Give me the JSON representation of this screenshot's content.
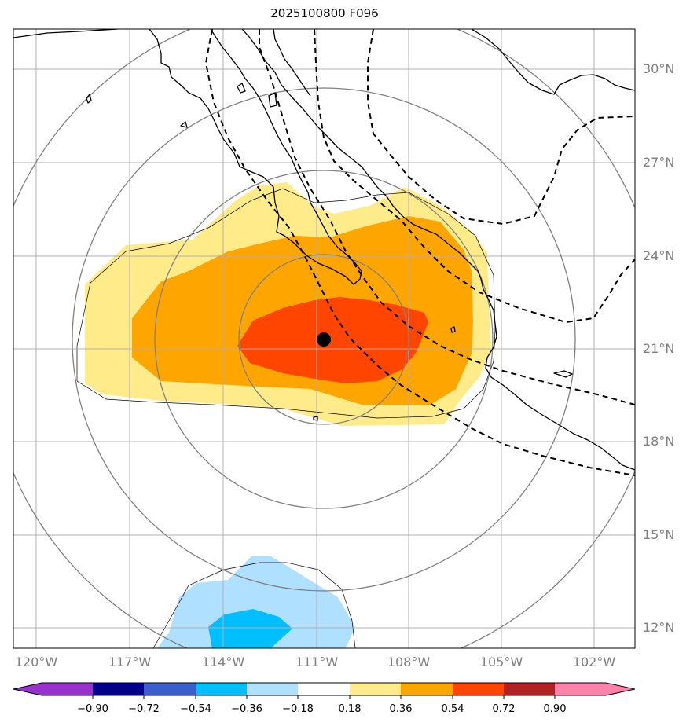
{
  "title": "2025100800 F096",
  "lat_labels": [
    "30°N",
    "27°N",
    "24°N",
    "21°N",
    "18°N",
    "15°N",
    "12°N"
  ],
  "lon_labels": [
    "120°W",
    "117°W",
    "114°W",
    "111°W",
    "108°W",
    "105°W",
    "102°W"
  ],
  "colorbar": {
    "ticks": [
      "−0.90",
      "−0.72",
      "−0.54",
      "−0.36",
      "−0.18",
      "0.18",
      "0.36",
      "0.54",
      "0.72",
      "0.90"
    ],
    "colors": [
      "#9932cc",
      "#00008b",
      "#3a5fcd",
      "#00bfff",
      "#b0e0ff",
      "#ffffff",
      "#ffeb8a",
      "#ffa500",
      "#ff4500",
      "#b22222",
      "#ff82ab"
    ]
  },
  "storm_center": {
    "lat": 21.3,
    "lon": -110.8
  },
  "colors": {
    "neg_light": "#b0e0ff",
    "neg_mid": "#00bfff",
    "pos_light": "#ffeb8a",
    "pos_mid": "#ffa500",
    "pos_high": "#ff4500",
    "grid": "#b0b0b0",
    "range_ring": "#808080",
    "coast": "#000000",
    "track": "#000000"
  }
}
